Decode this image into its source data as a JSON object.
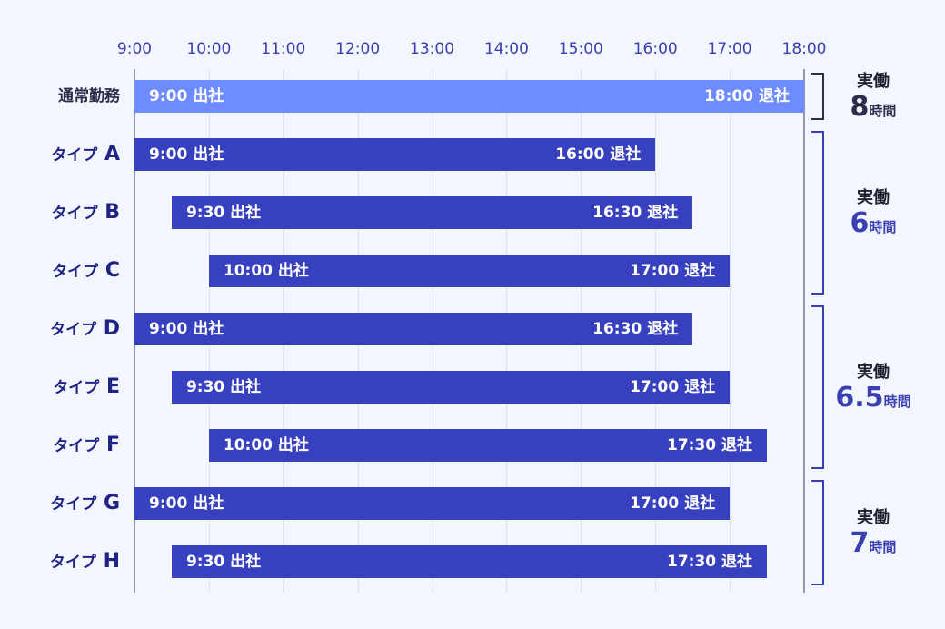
{
  "colors": {
    "background": "#F4F6FD",
    "normal_bar": "#6E8BFF",
    "type_bar": "#3740BE",
    "tick_text": "#3A40B4",
    "type_label": "#1F2386",
    "normal_label": "#2B2D4A"
  },
  "chart_data": {
    "type": "bar",
    "orientation": "horizontal-range",
    "x_axis": {
      "ticks": [
        "9:00",
        "10:00",
        "11:00",
        "12:00",
        "13:00",
        "14:00",
        "15:00",
        "16:00",
        "17:00",
        "18:00"
      ],
      "range": [
        "9:00",
        "18:00"
      ],
      "grid": true
    },
    "rows": [
      {
        "label": "通常勤務",
        "start": "9:00",
        "end": "18:00",
        "start_label": "9:00 出社",
        "end_label": "18:00 退社",
        "style": "normal"
      },
      {
        "label": "タイプ",
        "letter": "A",
        "start": "9:00",
        "end": "16:00",
        "start_label": "9:00 出社",
        "end_label": "16:00 退社",
        "style": "type"
      },
      {
        "label": "タイプ",
        "letter": "B",
        "start": "9:30",
        "end": "16:30",
        "start_label": "9:30 出社",
        "end_label": "16:30 退社",
        "style": "type"
      },
      {
        "label": "タイプ",
        "letter": "C",
        "start": "10:00",
        "end": "17:00",
        "start_label": "10:00 出社",
        "end_label": "17:00 退社",
        "style": "type"
      },
      {
        "label": "タイプ",
        "letter": "D",
        "start": "9:00",
        "end": "16:30",
        "start_label": "9:00 出社",
        "end_label": "16:30 退社",
        "style": "type"
      },
      {
        "label": "タイプ",
        "letter": "E",
        "start": "9:30",
        "end": "17:00",
        "start_label": "9:30 出社",
        "end_label": "17:00 退社",
        "style": "type"
      },
      {
        "label": "タイプ",
        "letter": "F",
        "start": "10:00",
        "end": "17:30",
        "start_label": "10:00 出社",
        "end_label": "17:30 退社",
        "style": "type"
      },
      {
        "label": "タイプ",
        "letter": "G",
        "start": "9:00",
        "end": "17:00",
        "start_label": "9:00 出社",
        "end_label": "17:00 退社",
        "style": "type"
      },
      {
        "label": "タイプ",
        "letter": "H",
        "start": "9:30",
        "end": "17:30",
        "start_label": "9:30 出社",
        "end_label": "17:30 退社",
        "style": "type"
      }
    ],
    "groups": [
      {
        "rows": [
          0,
          0
        ],
        "label": "実働",
        "hours": "8",
        "unit": "時間",
        "style": "normal"
      },
      {
        "rows": [
          1,
          3
        ],
        "label": "実働",
        "hours": "6",
        "unit": "時間",
        "style": "type"
      },
      {
        "rows": [
          4,
          6
        ],
        "label": "実働",
        "hours": "6.5",
        "unit": "時間",
        "style": "type"
      },
      {
        "rows": [
          7,
          8
        ],
        "label": "実働",
        "hours": "7",
        "unit": "時間",
        "style": "type"
      }
    ]
  }
}
